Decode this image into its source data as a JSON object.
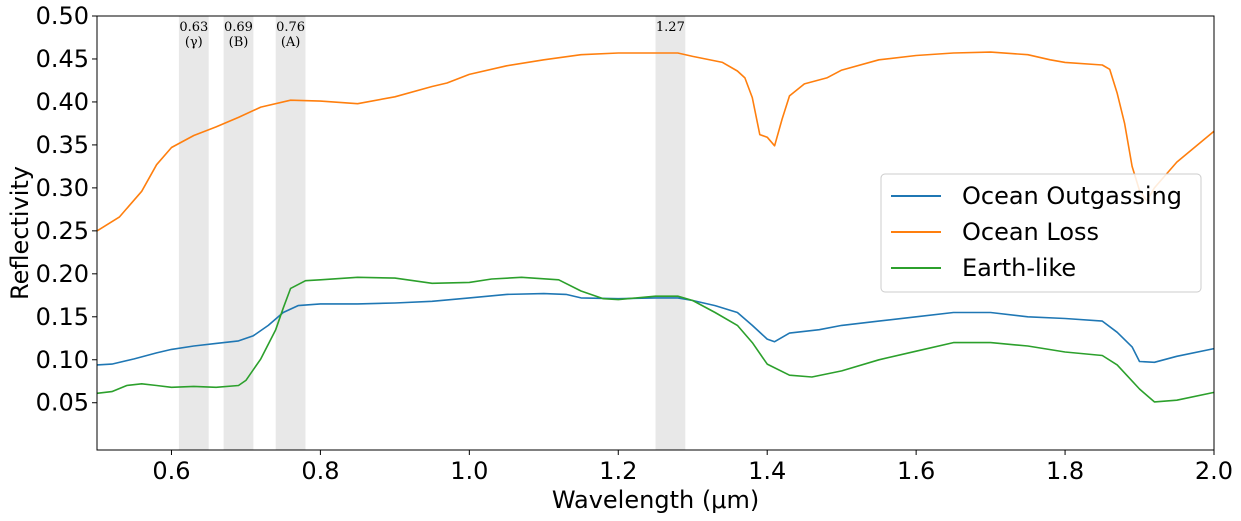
{
  "chart_data": {
    "type": "line",
    "title": "",
    "xlabel": "Wavelength (μm)",
    "ylabel": "Reflectivity",
    "xlim": [
      0.5,
      2.0
    ],
    "ylim": [
      -0.005,
      0.5
    ],
    "xticks": [
      0.6,
      0.8,
      1.0,
      1.2,
      1.4,
      1.6,
      1.8,
      2.0
    ],
    "xtick_labels": [
      "0.6",
      "0.8",
      "1.0",
      "1.2",
      "1.4",
      "1.6",
      "1.8",
      "2.0"
    ],
    "yticks": [
      0.05,
      0.1,
      0.15,
      0.2,
      0.25,
      0.3,
      0.35,
      0.4,
      0.45,
      0.5
    ],
    "ytick_labels": [
      "0.05",
      "0.10",
      "0.15",
      "0.20",
      "0.25",
      "0.30",
      "0.35",
      "0.40",
      "0.45",
      "0.50"
    ],
    "grid": false,
    "legend_position": "center-right",
    "bands": [
      {
        "start": 0.61,
        "end": 0.65,
        "label": "0.63",
        "sublabel": "(γ)"
      },
      {
        "start": 0.67,
        "end": 0.71,
        "label": "0.69",
        "sublabel": "(B)"
      },
      {
        "start": 0.74,
        "end": 0.78,
        "label": "0.76",
        "sublabel": "(A)"
      },
      {
        "start": 1.25,
        "end": 1.29,
        "label": "1.27",
        "sublabel": ""
      }
    ],
    "series": [
      {
        "name": "Ocean Outgassing",
        "color": "#1f77b4",
        "points": [
          [
            0.5,
            0.094
          ],
          [
            0.52,
            0.095
          ],
          [
            0.55,
            0.101
          ],
          [
            0.58,
            0.108
          ],
          [
            0.6,
            0.112
          ],
          [
            0.63,
            0.116
          ],
          [
            0.66,
            0.119
          ],
          [
            0.69,
            0.122
          ],
          [
            0.71,
            0.128
          ],
          [
            0.73,
            0.14
          ],
          [
            0.75,
            0.155
          ],
          [
            0.77,
            0.163
          ],
          [
            0.8,
            0.165
          ],
          [
            0.85,
            0.165
          ],
          [
            0.9,
            0.166
          ],
          [
            0.95,
            0.168
          ],
          [
            1.0,
            0.172
          ],
          [
            1.05,
            0.176
          ],
          [
            1.1,
            0.177
          ],
          [
            1.13,
            0.176
          ],
          [
            1.15,
            0.172
          ],
          [
            1.2,
            0.171
          ],
          [
            1.25,
            0.172
          ],
          [
            1.28,
            0.172
          ],
          [
            1.3,
            0.169
          ],
          [
            1.33,
            0.163
          ],
          [
            1.36,
            0.155
          ],
          [
            1.38,
            0.14
          ],
          [
            1.4,
            0.124
          ],
          [
            1.41,
            0.121
          ],
          [
            1.43,
            0.131
          ],
          [
            1.47,
            0.135
          ],
          [
            1.5,
            0.14
          ],
          [
            1.55,
            0.145
          ],
          [
            1.6,
            0.15
          ],
          [
            1.65,
            0.155
          ],
          [
            1.7,
            0.155
          ],
          [
            1.75,
            0.15
          ],
          [
            1.8,
            0.148
          ],
          [
            1.85,
            0.145
          ],
          [
            1.87,
            0.132
          ],
          [
            1.89,
            0.115
          ],
          [
            1.9,
            0.098
          ],
          [
            1.92,
            0.097
          ],
          [
            1.95,
            0.104
          ],
          [
            2.0,
            0.113
          ]
        ]
      },
      {
        "name": "Ocean Loss",
        "color": "#ff7f0e",
        "points": [
          [
            0.5,
            0.25
          ],
          [
            0.53,
            0.266
          ],
          [
            0.56,
            0.296
          ],
          [
            0.58,
            0.327
          ],
          [
            0.6,
            0.347
          ],
          [
            0.63,
            0.361
          ],
          [
            0.66,
            0.371
          ],
          [
            0.69,
            0.382
          ],
          [
            0.72,
            0.394
          ],
          [
            0.76,
            0.402
          ],
          [
            0.8,
            0.401
          ],
          [
            0.85,
            0.398
          ],
          [
            0.9,
            0.406
          ],
          [
            0.95,
            0.418
          ],
          [
            0.97,
            0.422
          ],
          [
            1.0,
            0.432
          ],
          [
            1.05,
            0.442
          ],
          [
            1.1,
            0.449
          ],
          [
            1.15,
            0.455
          ],
          [
            1.2,
            0.457
          ],
          [
            1.25,
            0.457
          ],
          [
            1.28,
            0.457
          ],
          [
            1.3,
            0.453
          ],
          [
            1.34,
            0.446
          ],
          [
            1.36,
            0.436
          ],
          [
            1.37,
            0.428
          ],
          [
            1.38,
            0.405
          ],
          [
            1.39,
            0.362
          ],
          [
            1.4,
            0.359
          ],
          [
            1.41,
            0.349
          ],
          [
            1.42,
            0.38
          ],
          [
            1.43,
            0.407
          ],
          [
            1.45,
            0.421
          ],
          [
            1.48,
            0.428
          ],
          [
            1.5,
            0.437
          ],
          [
            1.55,
            0.449
          ],
          [
            1.6,
            0.454
          ],
          [
            1.65,
            0.457
          ],
          [
            1.7,
            0.458
          ],
          [
            1.75,
            0.455
          ],
          [
            1.78,
            0.449
          ],
          [
            1.8,
            0.446
          ],
          [
            1.85,
            0.443
          ],
          [
            1.86,
            0.438
          ],
          [
            1.87,
            0.41
          ],
          [
            1.88,
            0.375
          ],
          [
            1.89,
            0.325
          ],
          [
            1.9,
            0.297
          ],
          [
            1.91,
            0.285
          ],
          [
            1.92,
            0.3
          ],
          [
            1.95,
            0.33
          ],
          [
            2.0,
            0.366
          ]
        ]
      },
      {
        "name": "Earth-like",
        "color": "#2ca02c",
        "points": [
          [
            0.5,
            0.061
          ],
          [
            0.52,
            0.063
          ],
          [
            0.54,
            0.07
          ],
          [
            0.56,
            0.072
          ],
          [
            0.58,
            0.07
          ],
          [
            0.6,
            0.068
          ],
          [
            0.63,
            0.069
          ],
          [
            0.66,
            0.068
          ],
          [
            0.69,
            0.07
          ],
          [
            0.7,
            0.076
          ],
          [
            0.72,
            0.101
          ],
          [
            0.74,
            0.135
          ],
          [
            0.75,
            0.16
          ],
          [
            0.76,
            0.183
          ],
          [
            0.78,
            0.192
          ],
          [
            0.8,
            0.193
          ],
          [
            0.85,
            0.196
          ],
          [
            0.9,
            0.195
          ],
          [
            0.95,
            0.189
          ],
          [
            1.0,
            0.19
          ],
          [
            1.03,
            0.194
          ],
          [
            1.07,
            0.196
          ],
          [
            1.12,
            0.193
          ],
          [
            1.15,
            0.18
          ],
          [
            1.18,
            0.171
          ],
          [
            1.2,
            0.17
          ],
          [
            1.25,
            0.174
          ],
          [
            1.28,
            0.174
          ],
          [
            1.3,
            0.169
          ],
          [
            1.33,
            0.155
          ],
          [
            1.36,
            0.14
          ],
          [
            1.38,
            0.12
          ],
          [
            1.4,
            0.095
          ],
          [
            1.43,
            0.082
          ],
          [
            1.46,
            0.08
          ],
          [
            1.5,
            0.087
          ],
          [
            1.55,
            0.1
          ],
          [
            1.6,
            0.11
          ],
          [
            1.65,
            0.12
          ],
          [
            1.7,
            0.12
          ],
          [
            1.75,
            0.116
          ],
          [
            1.8,
            0.109
          ],
          [
            1.85,
            0.105
          ],
          [
            1.87,
            0.094
          ],
          [
            1.9,
            0.066
          ],
          [
            1.92,
            0.051
          ],
          [
            1.95,
            0.053
          ],
          [
            2.0,
            0.062
          ]
        ]
      }
    ]
  }
}
